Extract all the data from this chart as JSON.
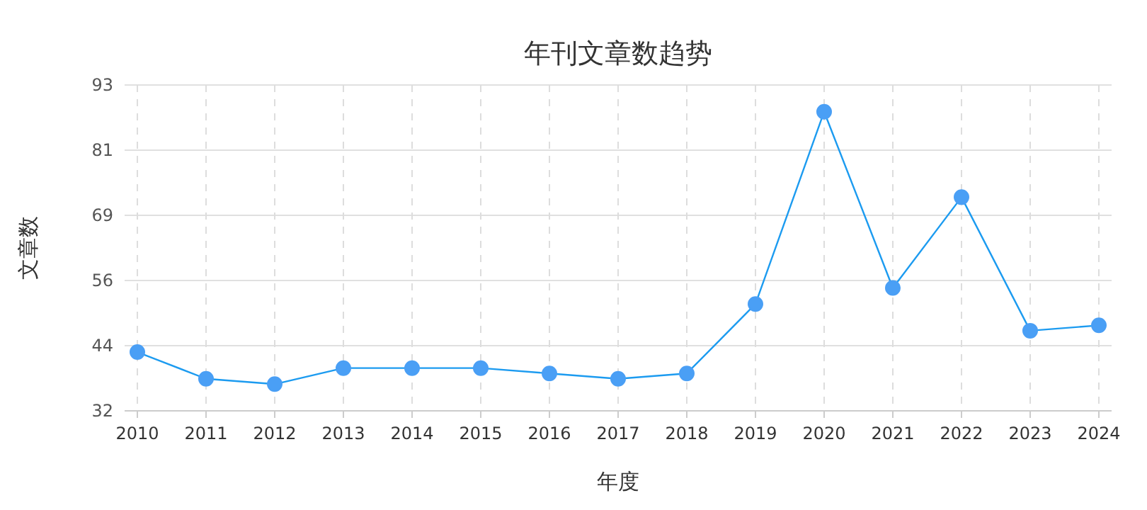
{
  "chart_data": {
    "type": "line",
    "title": "年刊文章数趋势",
    "xlabel": "年度",
    "ylabel": "文章数",
    "categories": [
      "2010",
      "2011",
      "2012",
      "2013",
      "2014",
      "2015",
      "2016",
      "2017",
      "2018",
      "2019",
      "2020",
      "2021",
      "2022",
      "2023",
      "2024"
    ],
    "values": [
      43,
      38,
      37,
      40,
      40,
      40,
      39,
      38,
      39,
      52,
      88,
      55,
      72,
      47,
      48
    ],
    "color": "#4a9ff5",
    "ylim": [
      32,
      93
    ],
    "yticks": [
      32,
      {
        "value": 44.2,
        "label": "44"
      },
      {
        "value": 56.4,
        "label": "56"
      },
      {
        "value": 68.6,
        "label": "69"
      },
      {
        "value": 80.8,
        "label": "81"
      },
      93
    ],
    "grid": true,
    "marker": "circle"
  }
}
